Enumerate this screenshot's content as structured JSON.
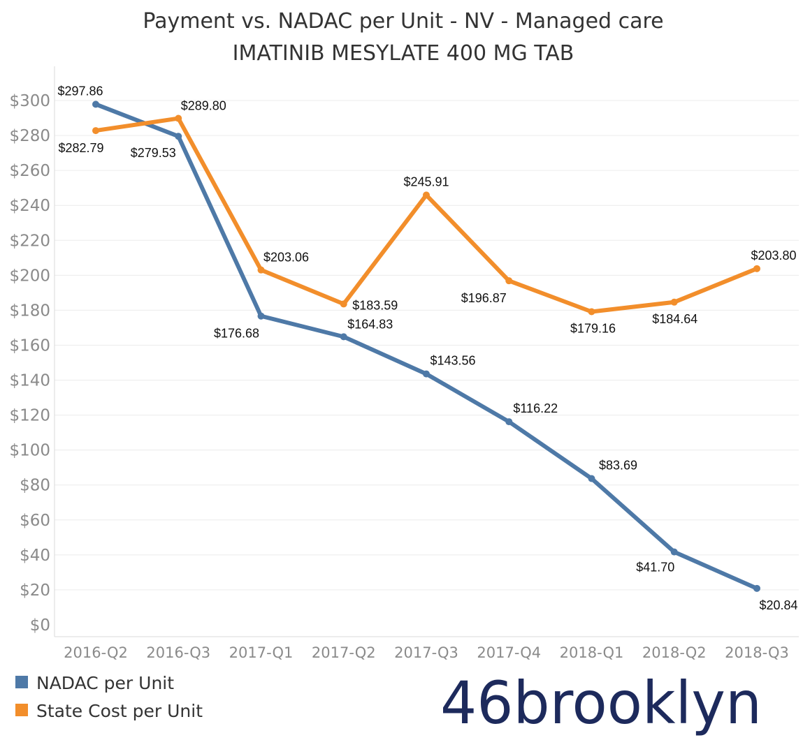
{
  "colors": {
    "nadac": "#4e79a7",
    "state": "#f28e2b",
    "grid": "#ececec",
    "axis_text": "#8a8a8a",
    "logo": "#1d2a5c"
  },
  "logo": {
    "text": "46brooklyn"
  },
  "chart_data": {
    "type": "line",
    "title": "Payment vs. NADAC per Unit - NV - Managed care",
    "subtitle": "IMATINIB MESYLATE 400 MG TAB",
    "xlabel": "",
    "ylabel": "",
    "categories": [
      "2016-Q2",
      "2016-Q3",
      "2017-Q1",
      "2017-Q2",
      "2017-Q3",
      "2017-Q4",
      "2018-Q1",
      "2018-Q2",
      "2018-Q3"
    ],
    "ylim": [
      0,
      300
    ],
    "yticks": [
      0,
      20,
      40,
      60,
      80,
      100,
      120,
      140,
      160,
      180,
      200,
      220,
      240,
      260,
      280,
      300
    ],
    "ytick_labels": [
      "$0",
      "$20",
      "$40",
      "$60",
      "$80",
      "$100",
      "$120",
      "$140",
      "$160",
      "$180",
      "$200",
      "$220",
      "$240",
      "$260",
      "$280",
      "$300"
    ],
    "grid": true,
    "legend_position": "bottom-left",
    "series": [
      {
        "name": "NADAC per Unit",
        "color": "#4e79a7",
        "values": [
          297.86,
          279.53,
          176.68,
          164.83,
          143.56,
          116.22,
          83.69,
          41.7,
          20.84
        ],
        "labels": [
          "$297.86",
          "$279.53",
          "$176.68",
          "$164.83",
          "$143.56",
          "$116.22",
          "$83.69",
          "$41.70",
          "$20.84"
        ],
        "label_pos": [
          "above",
          "below",
          "below",
          "above",
          "above",
          "above",
          "above",
          "below",
          "below"
        ]
      },
      {
        "name": "State Cost per Unit",
        "color": "#f28e2b",
        "values": [
          282.79,
          289.8,
          203.06,
          183.59,
          245.91,
          196.87,
          179.16,
          184.64,
          203.8
        ],
        "labels": [
          "$282.79",
          "$289.80",
          "$203.06",
          "$183.59",
          "$245.91",
          "$196.87",
          "$179.16",
          "$184.64",
          "$203.80"
        ],
        "label_pos": [
          "below",
          "above",
          "above",
          "below",
          "above",
          "belowleft",
          "below",
          "below",
          "above"
        ]
      }
    ]
  }
}
